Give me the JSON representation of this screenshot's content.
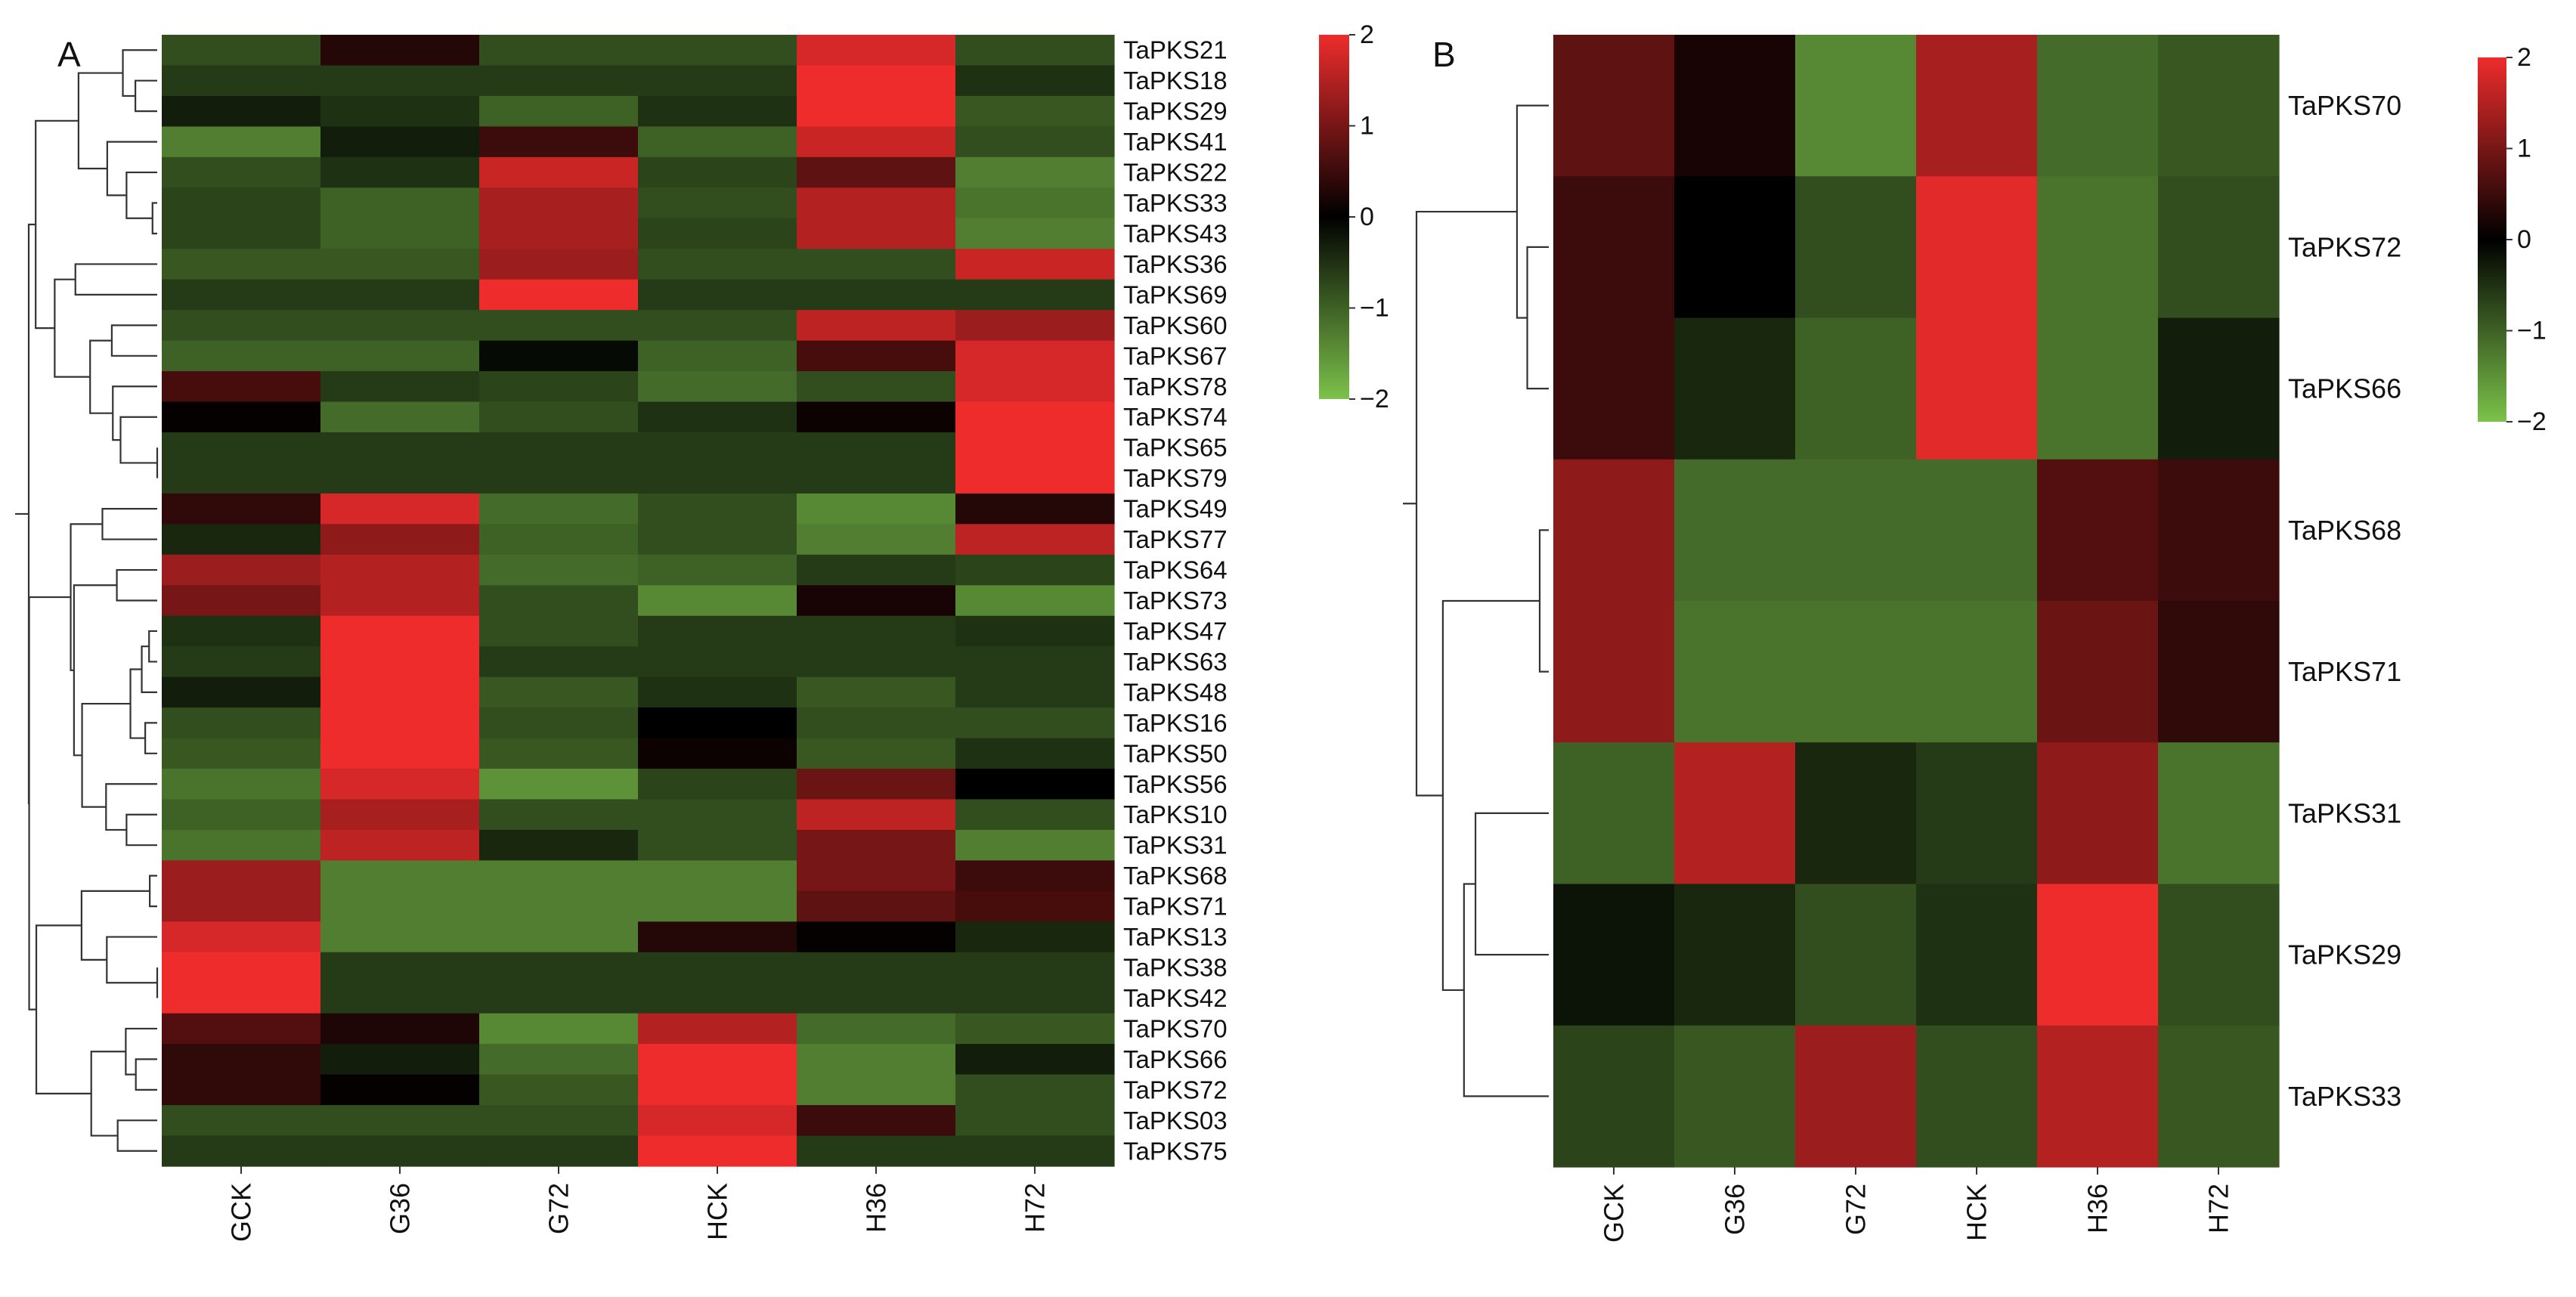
{
  "chart_data": [
    {
      "type": "heatmap",
      "panel_label": "A",
      "columns": [
        "GCK",
        "G36",
        "G72",
        "HCK",
        "H36",
        "H72"
      ],
      "rows": [
        "TaPKS21",
        "TaPKS18",
        "TaPKS29",
        "TaPKS41",
        "TaPKS22",
        "TaPKS33",
        "TaPKS43",
        "TaPKS36",
        "TaPKS69",
        "TaPKS60",
        "TaPKS67",
        "TaPKS78",
        "TaPKS74",
        "TaPKS65",
        "TaPKS79",
        "TaPKS49",
        "TaPKS77",
        "TaPKS64",
        "TaPKS73",
        "TaPKS47",
        "TaPKS63",
        "TaPKS48",
        "TaPKS16",
        "TaPKS50",
        "TaPKS56",
        "TaPKS10",
        "TaPKS31",
        "TaPKS68",
        "TaPKS71",
        "TaPKS13",
        "TaPKS38",
        "TaPKS42",
        "TaPKS70",
        "TaPKS66",
        "TaPKS72",
        "TaPKS03",
        "TaPKS75"
      ],
      "values": [
        [
          -0.8,
          0.3,
          -0.8,
          -0.8,
          1.8,
          -0.8
        ],
        [
          -0.6,
          -0.6,
          -0.6,
          -0.6,
          2.0,
          -0.5
        ],
        [
          -0.3,
          -0.5,
          -1.0,
          -0.5,
          2.0,
          -0.9
        ],
        [
          -1.3,
          -0.3,
          0.5,
          -1.0,
          1.7,
          -0.8
        ],
        [
          -0.8,
          -0.5,
          1.7,
          -0.7,
          0.8,
          -1.3
        ],
        [
          -0.7,
          -1.0,
          1.4,
          -0.8,
          1.5,
          -1.2
        ],
        [
          -0.7,
          -1.0,
          1.4,
          -0.7,
          1.5,
          -1.3
        ],
        [
          -0.9,
          -0.9,
          1.3,
          -0.8,
          -0.8,
          1.7
        ],
        [
          -0.6,
          -0.6,
          2.0,
          -0.6,
          -0.6,
          -0.6
        ],
        [
          -0.8,
          -0.8,
          -0.8,
          -0.8,
          1.6,
          1.3
        ],
        [
          -1.0,
          -1.0,
          -0.1,
          -1.0,
          0.6,
          1.8
        ],
        [
          0.6,
          -0.6,
          -0.7,
          -1.1,
          -0.8,
          1.8
        ],
        [
          0.05,
          -1.1,
          -0.8,
          -0.5,
          0.1,
          2.0
        ],
        [
          -0.6,
          -0.6,
          -0.6,
          -0.6,
          -0.6,
          2.0
        ],
        [
          -0.6,
          -0.6,
          -0.6,
          -0.6,
          -0.6,
          2.0
        ],
        [
          0.4,
          1.8,
          -1.1,
          -0.8,
          -1.4,
          0.3
        ],
        [
          -0.4,
          1.2,
          -1.0,
          -0.8,
          -1.3,
          1.6
        ],
        [
          1.3,
          1.5,
          -1.1,
          -1.0,
          -0.6,
          -0.7
        ],
        [
          1.0,
          1.5,
          -0.8,
          -1.4,
          0.2,
          -1.4
        ],
        [
          -0.5,
          2.0,
          -0.8,
          -0.6,
          -0.6,
          -0.5
        ],
        [
          -0.6,
          2.0,
          -0.6,
          -0.6,
          -0.6,
          -0.6
        ],
        [
          -0.3,
          2.0,
          -0.9,
          -0.5,
          -0.9,
          -0.6
        ],
        [
          -0.8,
          2.0,
          -0.8,
          0.0,
          -0.8,
          -0.8
        ],
        [
          -0.9,
          2.0,
          -0.9,
          0.1,
          -0.9,
          -0.5
        ],
        [
          -1.2,
          1.8,
          -1.5,
          -0.7,
          0.9,
          0.0
        ],
        [
          -1.0,
          1.4,
          -0.8,
          -0.8,
          1.6,
          -0.8
        ],
        [
          -1.2,
          1.6,
          -0.4,
          -0.8,
          1.0,
          -1.3
        ],
        [
          1.3,
          -1.3,
          -1.3,
          -1.3,
          1.0,
          0.5
        ],
        [
          1.3,
          -1.3,
          -1.3,
          -1.3,
          0.8,
          0.6
        ],
        [
          1.8,
          -1.3,
          -1.3,
          0.3,
          0.05,
          -0.4
        ],
        [
          2.0,
          -0.6,
          -0.6,
          -0.6,
          -0.6,
          -0.6
        ],
        [
          2.0,
          -0.6,
          -0.6,
          -0.6,
          -0.6,
          -0.6
        ],
        [
          0.7,
          0.25,
          -1.4,
          1.5,
          -1.1,
          -0.9
        ],
        [
          0.4,
          -0.3,
          -1.1,
          2.0,
          -1.3,
          -0.3
        ],
        [
          0.4,
          0.05,
          -0.9,
          2.0,
          -1.3,
          -0.8
        ],
        [
          -0.8,
          -0.8,
          -0.8,
          1.8,
          0.5,
          -0.8
        ],
        [
          -0.6,
          -0.6,
          -0.6,
          2.0,
          -0.6,
          -0.6
        ]
      ],
      "value_range": [
        -2,
        2
      ],
      "colorbar_ticks": [
        "2",
        "1",
        "0",
        "−1",
        "−2"
      ],
      "colorscale": {
        "low": "#7cc24a",
        "mid": "#000000",
        "high": "#ee2c2c"
      },
      "row_dendrogram": true,
      "xlabel": "",
      "ylabel": ""
    },
    {
      "type": "heatmap",
      "panel_label": "B",
      "columns": [
        "GCK",
        "G36",
        "G72",
        "HCK",
        "H36",
        "H72"
      ],
      "rows": [
        "TaPKS70",
        "TaPKS72",
        "TaPKS66",
        "TaPKS68",
        "TaPKS71",
        "TaPKS31",
        "TaPKS29",
        "TaPKS33"
      ],
      "values": [
        [
          0.8,
          0.2,
          -1.4,
          1.4,
          -1.1,
          -0.9
        ],
        [
          0.5,
          0.0,
          -0.8,
          1.9,
          -1.2,
          -0.8
        ],
        [
          0.5,
          -0.4,
          -1.0,
          1.9,
          -1.2,
          -0.3
        ],
        [
          1.2,
          -1.1,
          -1.1,
          -1.1,
          0.7,
          0.5
        ],
        [
          1.2,
          -1.2,
          -1.2,
          -1.2,
          0.9,
          0.4
        ],
        [
          -1.0,
          1.5,
          -0.4,
          -0.6,
          1.2,
          -1.2
        ],
        [
          -0.2,
          -0.4,
          -0.8,
          -0.5,
          2.0,
          -0.8
        ],
        [
          -0.7,
          -0.9,
          1.3,
          -0.8,
          1.5,
          -0.9
        ]
      ],
      "value_range": [
        -2,
        2
      ],
      "colorbar_ticks": [
        "2",
        "1",
        "0",
        "−1",
        "−2"
      ],
      "colorscale": {
        "low": "#7cc24a",
        "mid": "#000000",
        "high": "#ee2c2c"
      },
      "row_dendrogram": true,
      "xlabel": "",
      "ylabel": ""
    }
  ]
}
